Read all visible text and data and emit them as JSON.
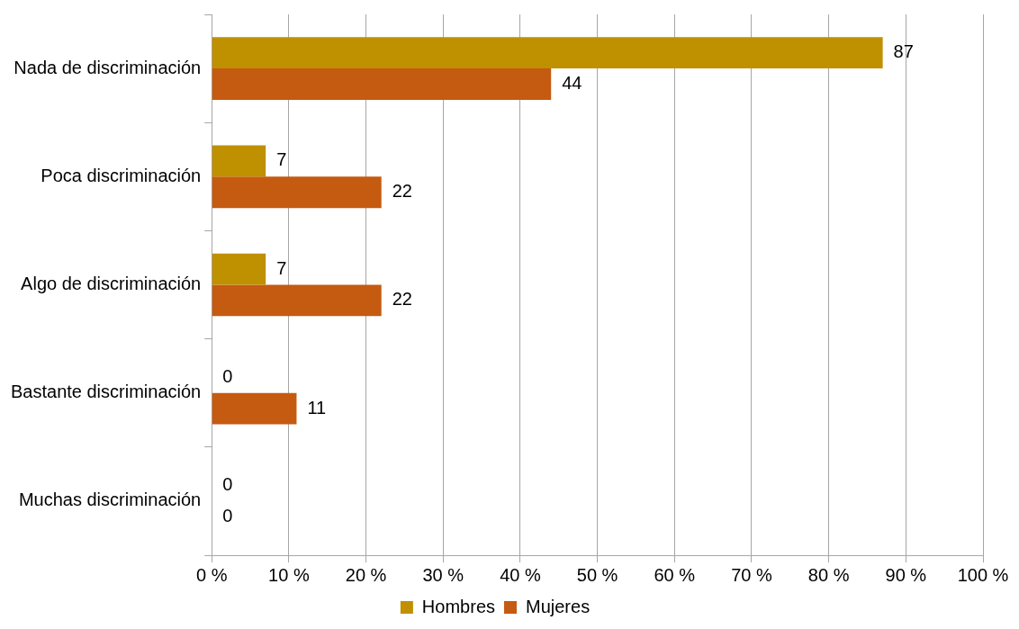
{
  "chart_data": {
    "type": "bar",
    "orientation": "horizontal",
    "categories": [
      "Nada de discriminación",
      "Poca discriminación",
      "Algo de discriminación",
      "Bastante discriminación",
      "Muchas discriminación"
    ],
    "series": [
      {
        "name": "Hombres",
        "color": "#bf9000",
        "values": [
          87,
          7,
          7,
          0,
          0
        ]
      },
      {
        "name": "Mujeres",
        "color": "#c55a11",
        "values": [
          44,
          22,
          22,
          11,
          0
        ]
      }
    ],
    "xlim": [
      0,
      100
    ],
    "xticks": [
      {
        "value": 0,
        "label": "0 %"
      },
      {
        "value": 10,
        "label": "10 %"
      },
      {
        "value": 20,
        "label": "20 %"
      },
      {
        "value": 30,
        "label": "30 %"
      },
      {
        "value": 40,
        "label": "40 %"
      },
      {
        "value": 50,
        "label": "50 %"
      },
      {
        "value": 60,
        "label": "60 %"
      },
      {
        "value": 70,
        "label": "70 %"
      },
      {
        "value": 80,
        "label": "80 %"
      },
      {
        "value": 90,
        "label": "90 %"
      },
      {
        "value": 100,
        "label": "100 %"
      }
    ],
    "grid": "x",
    "legend": "bottom",
    "data_labels": true
  }
}
